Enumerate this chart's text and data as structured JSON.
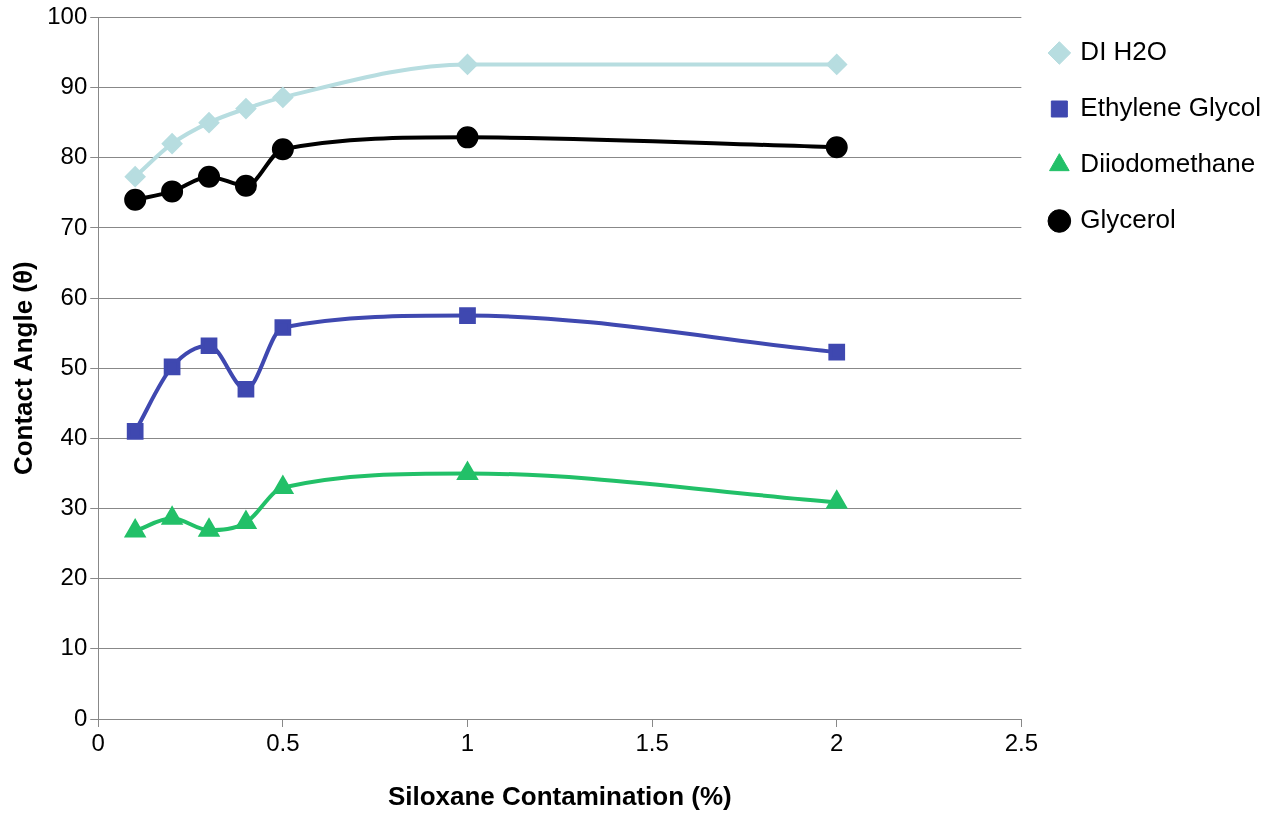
{
  "chart_data": {
    "type": "line",
    "xlabel": "Siloxane Contamination (%)",
    "ylabel": "Contact Angle (θ)",
    "x": [
      0.1,
      0.2,
      0.3,
      0.4,
      0.5,
      1,
      2
    ],
    "series": [
      {
        "name": "DI H2O",
        "color": "#b7dde0",
        "marker": "diamond",
        "values": [
          77.3,
          82,
          85,
          87,
          88.6,
          93.3,
          93.3
        ]
      },
      {
        "name": "Ethylene Glycol",
        "color": "#3f48b0",
        "marker": "square",
        "values": [
          41,
          50.2,
          53.2,
          47,
          55.8,
          57.5,
          52.3
        ]
      },
      {
        "name": "Diiodomethane",
        "color": "#22c068",
        "marker": "triangle",
        "values": [
          26.8,
          28.6,
          26.9,
          28,
          33,
          35,
          30.9
        ]
      },
      {
        "name": "Glycerol",
        "color": "#000000",
        "marker": "circle",
        "values": [
          74,
          75.2,
          77.3,
          76,
          81.2,
          82.9,
          81.5
        ]
      }
    ],
    "xlim": [
      0,
      2.5
    ],
    "xticks": [
      0,
      0.5,
      1,
      1.5,
      2,
      2.5
    ],
    "ylim": [
      0,
      100
    ],
    "yticks": [
      0,
      10,
      20,
      30,
      40,
      50,
      60,
      70,
      80,
      90,
      100
    ],
    "grid": "y",
    "legend": "right",
    "line_style": "solid"
  }
}
